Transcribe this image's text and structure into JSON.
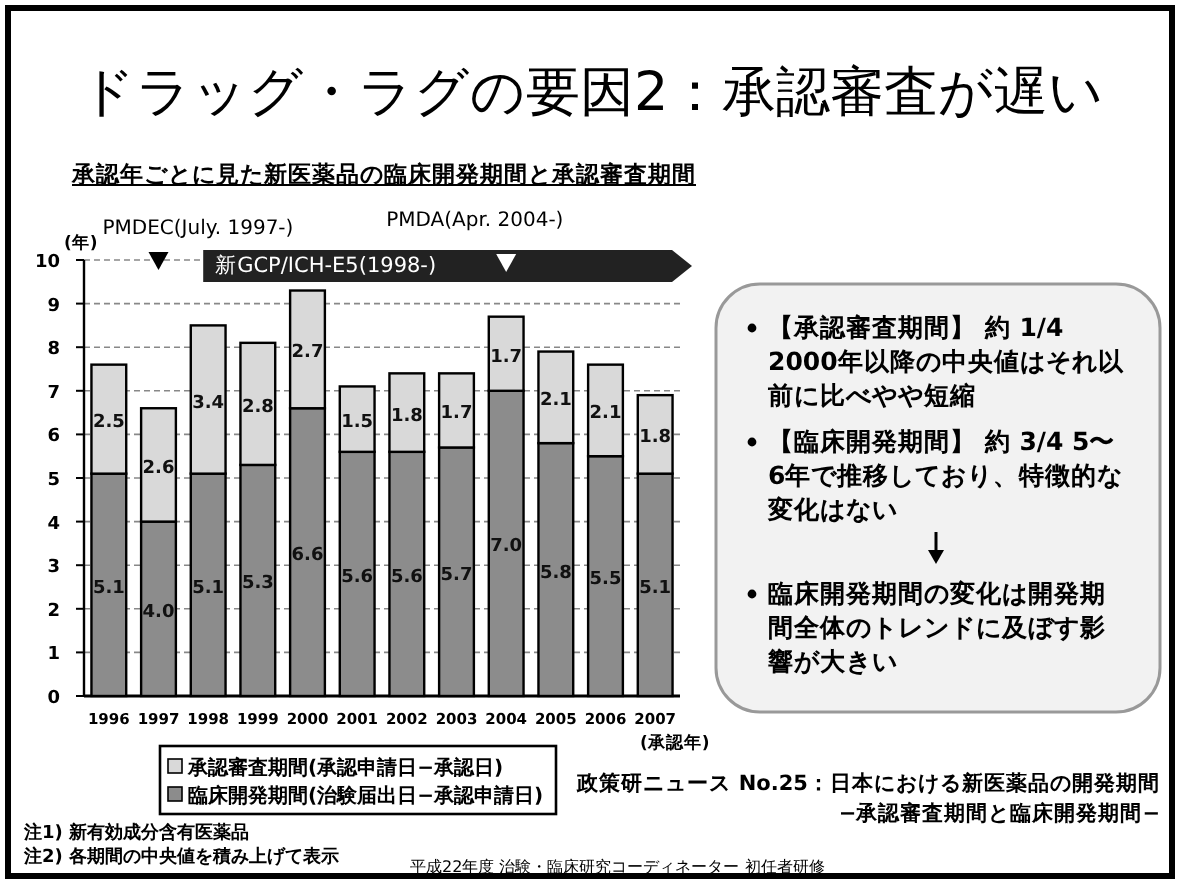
{
  "chart_data": {
    "type": "bar",
    "stacked": true,
    "title": "ドラッグ・ラグの要因2：承認審査が遅い",
    "subtitle": "承認年ごとに見た新医薬品の臨床開発期間と承認審査期間",
    "ylabel": "(年)",
    "xlabel": "(承認年)",
    "categories": [
      "1996",
      "1997",
      "1998",
      "1999",
      "2000",
      "2001",
      "2002",
      "2003",
      "2004",
      "2005",
      "2006",
      "2007"
    ],
    "series": [
      {
        "name": "臨床開発期間(治験届出日−承認申請日)",
        "color": "#8c8c8c",
        "values": [
          5.1,
          4.0,
          5.1,
          5.3,
          6.6,
          5.6,
          5.6,
          5.7,
          7.0,
          5.8,
          5.5,
          5.1
        ],
        "value_labels": [
          "5.1",
          "4.0",
          "5.1",
          "5.3",
          "6.6",
          "5.6",
          "5.6",
          "5.7",
          "7.0",
          "5.8",
          "5.5",
          "5.1"
        ]
      },
      {
        "name": "承認審査期間(承認申請日−承認日)",
        "color": "#d9d9d9",
        "values": [
          2.5,
          2.6,
          3.4,
          2.8,
          2.7,
          1.5,
          1.8,
          1.7,
          1.7,
          2.1,
          2.1,
          1.8
        ],
        "value_labels": [
          "2.5",
          "2.6",
          "3.4",
          "2.8",
          "2.7",
          "1.5",
          "1.8",
          "1.7",
          "1.7",
          "2.1",
          "2.1",
          "1.8"
        ]
      }
    ],
    "ylim": [
      0,
      10
    ],
    "yticks": [
      0,
      1,
      2,
      3,
      4,
      5,
      6,
      7,
      8,
      9,
      10
    ],
    "grid": "y",
    "legend": "bottom",
    "annotations": [
      {
        "text": "PMDEC(July. 1997-)",
        "x": "1997",
        "y": 10
      },
      "新GCP/ICH-E5(1998-)",
      {
        "text": "PMDA(Apr. 2004-)",
        "x": "2004",
        "y": 10
      },
      "【承認審査期間】 約 1/4 2000年以降の中央値はそれ以前に比べやや短縮",
      "【臨床開発期間】 約 3/4 5〜6年で推移しており、特徴的な変化はない",
      "臨床開発期間の変化は開発期間全体のトレンドに及ぼす影響が大きい",
      "政策研ニュース No.25：日本における新医薬品の開発期間",
      "−承認審査期間と臨床開発期間−",
      "注1) 新有効成分含有医薬品",
      "注2) 各期間の中央値を積み上げて表示",
      "平成22年度 治験・臨床研究コーディネーター 初任者研修"
    ]
  }
}
